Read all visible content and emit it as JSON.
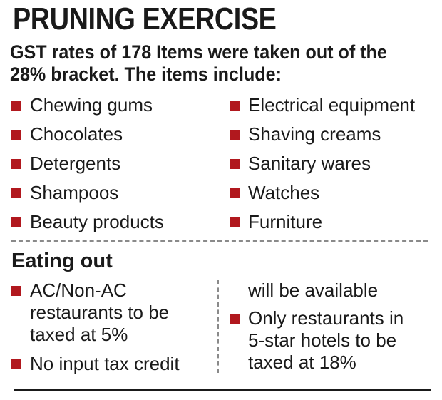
{
  "title": "PRUNING EXERCISE",
  "subtitle": "GST rates of 178 Items were taken out of the 28% bracket. The items include:",
  "items_left": [
    "Chewing gums",
    "Chocolates",
    "Detergents",
    "Shampoos",
    "Beauty products"
  ],
  "items_right": [
    "Electrical equipment",
    "Shaving creams",
    "Sanitary wares",
    "Watches",
    "Furniture"
  ],
  "eating_out": {
    "title": "Eating out",
    "left": [
      "AC/Non-AC\nrestaurants to be\ntaxed at 5%",
      "No input tax credit"
    ],
    "right_continuation": "will be available",
    "right": [
      "Only restaurants in\n5-star hotels to be\ntaxed at 18%"
    ]
  },
  "colors": {
    "bullet": "#b1181e",
    "text": "#1a1a1a"
  }
}
